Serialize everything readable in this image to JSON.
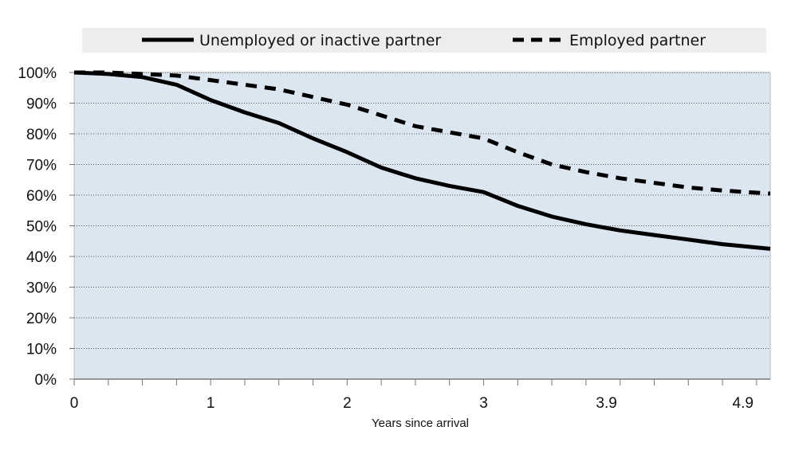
{
  "chart_data": {
    "type": "line",
    "xlabel": "Years since arrival",
    "ylabel": "",
    "xlim": [
      0,
      5.1
    ],
    "ylim": [
      0,
      100
    ],
    "x_ticks": [
      0,
      1,
      2,
      3,
      3.9,
      4.9
    ],
    "y_ticks": [
      0,
      10,
      20,
      30,
      40,
      50,
      60,
      70,
      80,
      90,
      100
    ],
    "y_tick_labels": [
      "0%",
      "10%",
      "20%",
      "30%",
      "40%",
      "50%",
      "60%",
      "70%",
      "80%",
      "90%",
      "100%"
    ],
    "grid": "horizontal-dotted",
    "legend_position": "top",
    "plot_background": "#dce6f1",
    "legend_background": "#ededed",
    "series": [
      {
        "name": "Unemployed or inactive partner",
        "style": "solid",
        "color": "#000000",
        "x": [
          0,
          0.25,
          0.5,
          0.75,
          1,
          1.25,
          1.5,
          1.75,
          2,
          2.25,
          2.5,
          2.75,
          3,
          3.25,
          3.5,
          3.75,
          4,
          4.25,
          4.5,
          4.75,
          5.1
        ],
        "y": [
          100,
          99.5,
          98.5,
          96,
          91,
          87,
          83.5,
          78.5,
          74,
          69,
          65.5,
          63,
          61,
          56.5,
          53,
          50.5,
          48.5,
          47,
          45.5,
          44,
          42.5
        ]
      },
      {
        "name": "Employed partner",
        "style": "dashed",
        "color": "#000000",
        "x": [
          0,
          0.25,
          0.5,
          0.75,
          1,
          1.25,
          1.5,
          1.75,
          2,
          2.25,
          2.5,
          2.75,
          3,
          3.25,
          3.5,
          3.75,
          4,
          4.25,
          4.5,
          4.75,
          5.1
        ],
        "y": [
          100,
          100,
          99.5,
          99,
          97.5,
          96,
          94.5,
          92,
          89.5,
          86,
          82.5,
          80.5,
          78.5,
          74,
          70,
          67.5,
          65.5,
          64,
          62.5,
          61.5,
          60.5
        ]
      }
    ]
  }
}
